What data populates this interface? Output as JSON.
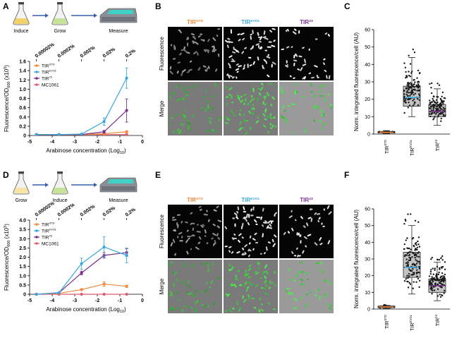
{
  "colors": {
    "std": "#f08a3c",
    "evol": "#3aa6dd",
    "t23": "#7a2e8e",
    "mc1061": "#e05a72",
    "gfp": "#5fd35f"
  },
  "panel_labels": {
    "a": "A",
    "b": "B",
    "c": "C",
    "d": "D",
    "e": "E",
    "f": "F"
  },
  "icons": [
    "flask-icon",
    "arrow-right-icon",
    "plate-reader-icon"
  ],
  "workflow_top": [
    "Induce",
    "Grow",
    "Measure"
  ],
  "workflow_bottom": [
    "Grow",
    "Induce",
    "Measure"
  ],
  "micrograph_rows": [
    "Fluorescence",
    "Merge"
  ],
  "micrograph_cols": [
    {
      "base": "TIR",
      "sup": "STD"
    },
    {
      "base": "TIR",
      "sup": "EVOL"
    },
    {
      "base": "TIR",
      "sup": "23"
    }
  ],
  "chart_data": [
    {
      "id": "A",
      "type": "line",
      "ylabel_main": "Fluorescence/OD",
      "ylabel_sub": "600",
      "ylabel_tail": " (x10",
      "ylabel_exp": "5",
      "ylabel_end": ")",
      "xlabel_main": "Arabinose concentration (Log",
      "xlabel_sub": "10",
      "xlabel_end": ")",
      "xlim": [
        -5,
        0
      ],
      "ylim": [
        0,
        1.6
      ],
      "xticks": [
        "-5",
        "-4",
        "-3",
        "-2",
        "-1",
        "0"
      ],
      "yticks": [
        "0",
        "0.2",
        "0.4",
        "0.6",
        "0.8",
        "1.0",
        "1.2",
        "1.4",
        "1.6"
      ],
      "top_ticks": [
        "0.00002%",
        "0.0002%",
        "0.002%",
        "0.02%",
        "0.2%"
      ],
      "legend": [
        {
          "key": "std",
          "base": "TIR",
          "sup": "STD"
        },
        {
          "key": "evol",
          "base": "TIR",
          "sup": "EVOL"
        },
        {
          "key": "t23",
          "base": "TIR",
          "sup": "23"
        },
        {
          "key": "mc1061",
          "base": "MC1061",
          "sup": ""
        }
      ],
      "x": [
        -4.7,
        -3.7,
        -2.7,
        -1.7,
        -0.7
      ],
      "series": [
        {
          "key": "std",
          "values": [
            0.02,
            0.02,
            0.02,
            0.04,
            0.08
          ],
          "err": [
            0,
            0,
            0,
            0.01,
            0.02
          ]
        },
        {
          "key": "evol",
          "values": [
            0.02,
            0.02,
            0.03,
            0.3,
            1.24
          ],
          "err": [
            0,
            0,
            0.01,
            0.08,
            0.22
          ]
        },
        {
          "key": "t23",
          "values": [
            0.02,
            0.02,
            0.02,
            0.08,
            0.54
          ],
          "err": [
            0,
            0,
            0,
            0.03,
            0.25
          ]
        },
        {
          "key": "mc1061",
          "values": [
            0.02,
            0.02,
            0.02,
            0.02,
            0.02
          ],
          "err": [
            0,
            0,
            0,
            0,
            0
          ]
        }
      ]
    },
    {
      "id": "D",
      "type": "line",
      "ylabel_main": "Fluorescence/OD",
      "ylabel_sub": "600",
      "ylabel_tail": " (x10",
      "ylabel_exp": "5",
      "ylabel_end": ")",
      "xlabel_main": "Arabinose concentration (Log",
      "xlabel_sub": "10",
      "xlabel_end": ")",
      "xlim": [
        -5,
        0
      ],
      "ylim": [
        0,
        4.0
      ],
      "xticks": [
        "-5",
        "-4",
        "-3",
        "-2",
        "-1",
        "0"
      ],
      "yticks": [
        "0",
        "0.5",
        "1.0",
        "1.5",
        "2.0",
        "2.5",
        "3.0",
        "3.5",
        "4.0"
      ],
      "top_ticks": [
        "0.00002%",
        "0.0002%",
        "0.002%",
        "0.02%",
        "0.2%"
      ],
      "legend": [
        {
          "key": "std",
          "base": "TIR",
          "sup": "STD"
        },
        {
          "key": "evol",
          "base": "TIR",
          "sup": "EVOL"
        },
        {
          "key": "t23",
          "base": "TIR",
          "sup": "23"
        },
        {
          "key": "mc1061",
          "base": "MC1061",
          "sup": ""
        }
      ],
      "x": [
        -4.7,
        -3.7,
        -2.7,
        -1.7,
        -0.7
      ],
      "series": [
        {
          "key": "std",
          "values": [
            0.0,
            0.05,
            0.25,
            0.55,
            0.43
          ],
          "err": [
            0,
            0,
            0.05,
            0.12,
            0.06
          ]
        },
        {
          "key": "evol",
          "values": [
            0.0,
            0.08,
            1.65,
            2.55,
            2.1
          ],
          "err": [
            0,
            0,
            0.3,
            0.55,
            0.4
          ]
        },
        {
          "key": "t23",
          "values": [
            0.0,
            0.08,
            1.15,
            2.1,
            2.25
          ],
          "err": [
            0,
            0,
            0.1,
            0.15,
            0.2
          ]
        },
        {
          "key": "mc1061",
          "values": [
            0.0,
            0.0,
            0.0,
            0.0,
            0.0
          ],
          "err": [
            0,
            0,
            0,
            0,
            0
          ]
        }
      ]
    },
    {
      "id": "C",
      "type": "box",
      "ylabel": "Norm. integrated fluorescence/cell (AU)",
      "ylim": [
        0,
        60
      ],
      "yticks": [
        "0",
        "10",
        "20",
        "30",
        "40",
        "50",
        "60"
      ],
      "categories": [
        {
          "key": "std",
          "base": "TIR",
          "sup": "STD",
          "q1": 0.6,
          "median": 1.0,
          "q3": 1.5,
          "min": 0.3,
          "max": 2.0,
          "mean": 1.0
        },
        {
          "key": "evol",
          "base": "TIR",
          "sup": "EVOL",
          "q1": 16,
          "median": 21,
          "q3": 27.5,
          "min": 10,
          "max": 44,
          "mean": 21
        },
        {
          "key": "t23",
          "base": "TIR",
          "sup": "23",
          "q1": 10,
          "median": 13,
          "q3": 17,
          "min": 5,
          "max": 26,
          "mean": 13
        }
      ]
    },
    {
      "id": "F",
      "type": "box",
      "ylabel": "Norm. integrated fluorescence/cell (AU)",
      "ylim": [
        0,
        60
      ],
      "yticks": [
        "0",
        "10",
        "20",
        "30",
        "40",
        "50",
        "60"
      ],
      "categories": [
        {
          "key": "std",
          "base": "TIR",
          "sup": "STD",
          "q1": 0.8,
          "median": 1.3,
          "q3": 1.8,
          "min": 0.4,
          "max": 2.2,
          "mean": 1.3
        },
        {
          "key": "evol",
          "base": "TIR",
          "sup": "EVOL",
          "q1": 19,
          "median": 25,
          "q3": 34,
          "min": 9,
          "max": 50,
          "mean": 25
        },
        {
          "key": "t23",
          "base": "TIR",
          "sup": "23",
          "q1": 10,
          "median": 14,
          "q3": 18,
          "min": 5,
          "max": 28,
          "mean": 14
        }
      ]
    }
  ]
}
